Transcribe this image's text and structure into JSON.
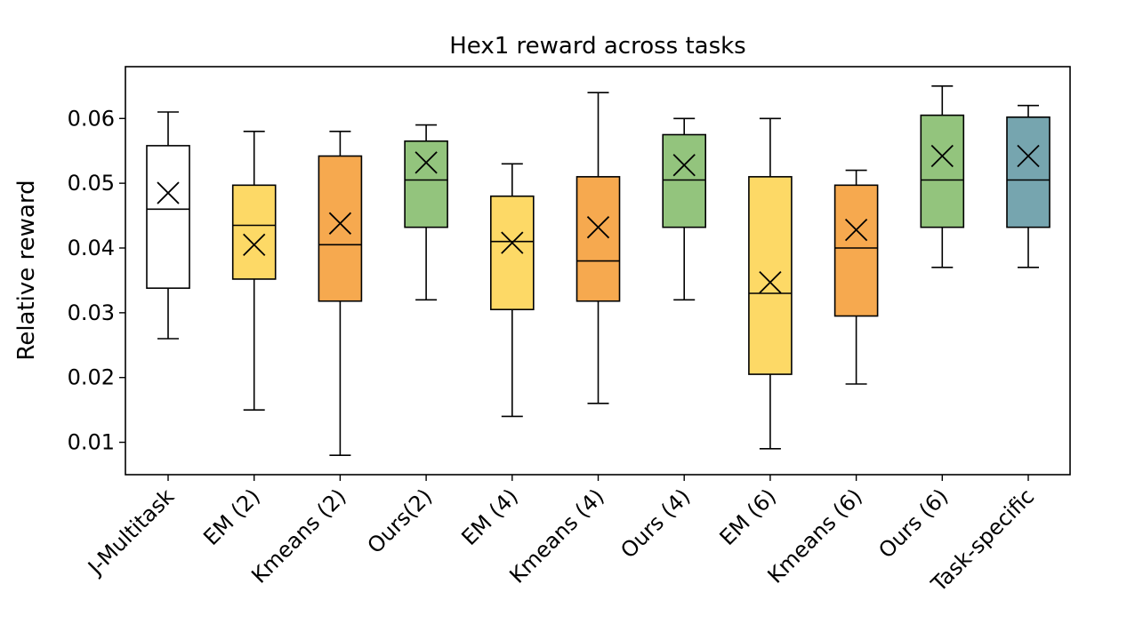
{
  "chart_data": {
    "type": "box",
    "title": "Hex1 reward across tasks",
    "xlabel": "",
    "ylabel": "Relative reward",
    "ylim": [
      0.005,
      0.068
    ],
    "yticks": [
      "0.01",
      "0.02",
      "0.03",
      "0.04",
      "0.05",
      "0.06"
    ],
    "grid": false,
    "legend": "none",
    "categories": [
      "J-Multitask",
      "EM (2)",
      "Kmeans (2)",
      "Ours(2)",
      "EM (4)",
      "Kmeans (4)",
      "Ours (4)",
      "EM (6)",
      "Kmeans (6)",
      "Ours (6)",
      "Task-specific"
    ],
    "boxes": [
      {
        "label": "J-Multitask",
        "whisker_low": 0.026,
        "q1": 0.0338,
        "median": 0.046,
        "q3": 0.0558,
        "whisker_high": 0.061,
        "mean": 0.0485,
        "color": "#ffffff"
      },
      {
        "label": "EM (2)",
        "whisker_low": 0.015,
        "q1": 0.0352,
        "median": 0.0435,
        "q3": 0.0497,
        "whisker_high": 0.058,
        "mean": 0.0405,
        "color": "#fdd966"
      },
      {
        "label": "Kmeans (2)",
        "whisker_low": 0.008,
        "q1": 0.0318,
        "median": 0.0405,
        "q3": 0.0542,
        "whisker_high": 0.058,
        "mean": 0.0438,
        "color": "#f6a94f"
      },
      {
        "label": "Ours(2)",
        "whisker_low": 0.032,
        "q1": 0.0432,
        "median": 0.0505,
        "q3": 0.0565,
        "whisker_high": 0.059,
        "mean": 0.0532,
        "color": "#93c47d"
      },
      {
        "label": "EM (4)",
        "whisker_low": 0.014,
        "q1": 0.0305,
        "median": 0.041,
        "q3": 0.048,
        "whisker_high": 0.053,
        "mean": 0.0408,
        "color": "#fdd966"
      },
      {
        "label": "Kmeans (4)",
        "whisker_low": 0.016,
        "q1": 0.0318,
        "median": 0.038,
        "q3": 0.051,
        "whisker_high": 0.064,
        "mean": 0.0432,
        "color": "#f6a94f"
      },
      {
        "label": "Ours (4)",
        "whisker_low": 0.032,
        "q1": 0.0432,
        "median": 0.0505,
        "q3": 0.0575,
        "whisker_high": 0.06,
        "mean": 0.0528,
        "color": "#93c47d"
      },
      {
        "label": "EM (6)",
        "whisker_low": 0.009,
        "q1": 0.0205,
        "median": 0.033,
        "q3": 0.051,
        "whisker_high": 0.06,
        "mean": 0.0347,
        "color": "#fdd966"
      },
      {
        "label": "Kmeans (6)",
        "whisker_low": 0.019,
        "q1": 0.0295,
        "median": 0.04,
        "q3": 0.0497,
        "whisker_high": 0.052,
        "mean": 0.0428,
        "color": "#f6a94f"
      },
      {
        "label": "Ours (6)",
        "whisker_low": 0.037,
        "q1": 0.0432,
        "median": 0.0505,
        "q3": 0.0605,
        "whisker_high": 0.065,
        "mean": 0.0542,
        "color": "#93c47d"
      },
      {
        "label": "Task-specific",
        "whisker_low": 0.037,
        "q1": 0.0432,
        "median": 0.0505,
        "q3": 0.0602,
        "whisker_high": 0.062,
        "mean": 0.0542,
        "color": "#76a5af"
      }
    ]
  }
}
